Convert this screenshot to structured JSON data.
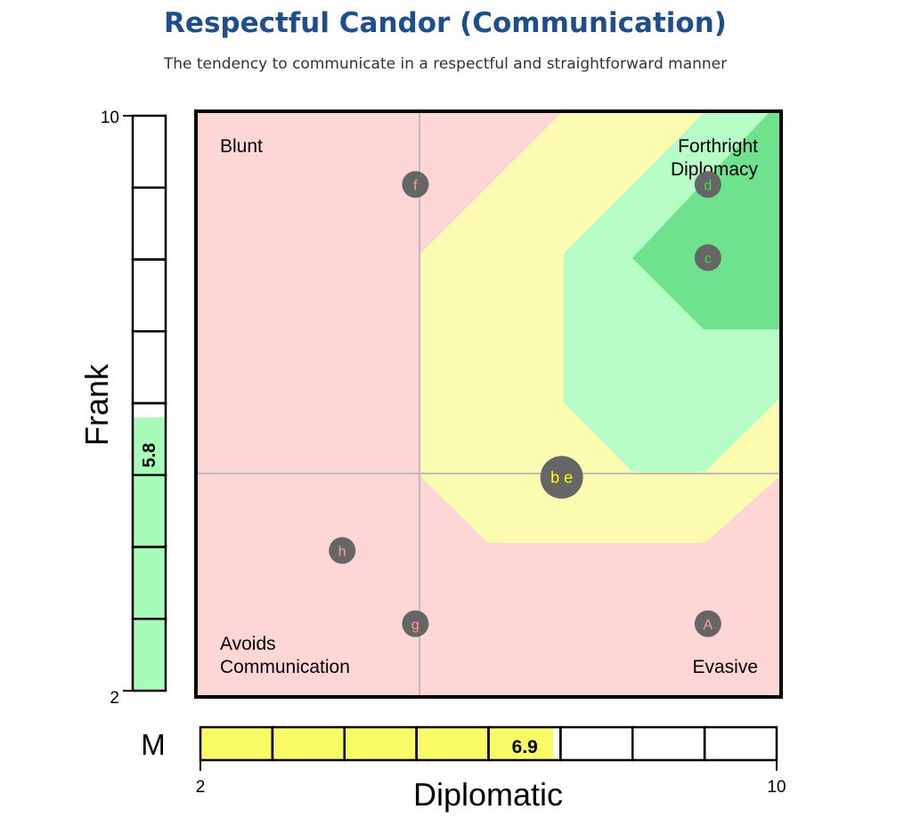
{
  "title": "Respectful Candor (Communication)",
  "subtitle": "The tendency to communicate in a respectful and straightforward manner",
  "chart_data": {
    "type": "scatter",
    "xlabel": "Diplomatic",
    "ylabel": "Frank",
    "xlim": [
      2,
      10
    ],
    "ylim": [
      2,
      10
    ],
    "x_ticks": [
      "2",
      "10"
    ],
    "y_ticks": [
      "2",
      "10"
    ],
    "midlines": {
      "x": 5,
      "y": 5
    },
    "quadrant_labels": {
      "top_left": "Blunt",
      "top_right": [
        "Forthright",
        "Diplomacy"
      ],
      "bottom_left": [
        "Avoids",
        "Communication"
      ],
      "bottom_right": "Evasive"
    },
    "zone_colors": {
      "low": "#ffd6d6",
      "mid": "#fcfcb0",
      "high": "#b6fdc8",
      "top": "#6ee28c"
    },
    "points": [
      {
        "label": "f",
        "x": 5,
        "y": 9,
        "text_color": "#ff9c9c"
      },
      {
        "label": "d",
        "x": 9,
        "y": 9,
        "text_color": "#44dd55"
      },
      {
        "label": "c",
        "x": 9,
        "y": 8,
        "text_color": "#44dd55"
      },
      {
        "label": "b e",
        "x": 7,
        "y": 5,
        "text_color": "#ffff00",
        "large": true
      },
      {
        "label": "h",
        "x": 4,
        "y": 4,
        "text_color": "#ff9c9c"
      },
      {
        "label": "g",
        "x": 5,
        "y": 3,
        "text_color": "#ff9c9c"
      },
      {
        "label": "A",
        "x": 9,
        "y": 3,
        "text_color": "#ff9c9c"
      }
    ],
    "frank_bar": {
      "value": 5.8,
      "label": "5.8",
      "color": "#a6fcb8"
    },
    "diplomatic_bar": {
      "value": 6.9,
      "label": "6.9",
      "prefix": "M",
      "color": "#f7fc66"
    }
  }
}
